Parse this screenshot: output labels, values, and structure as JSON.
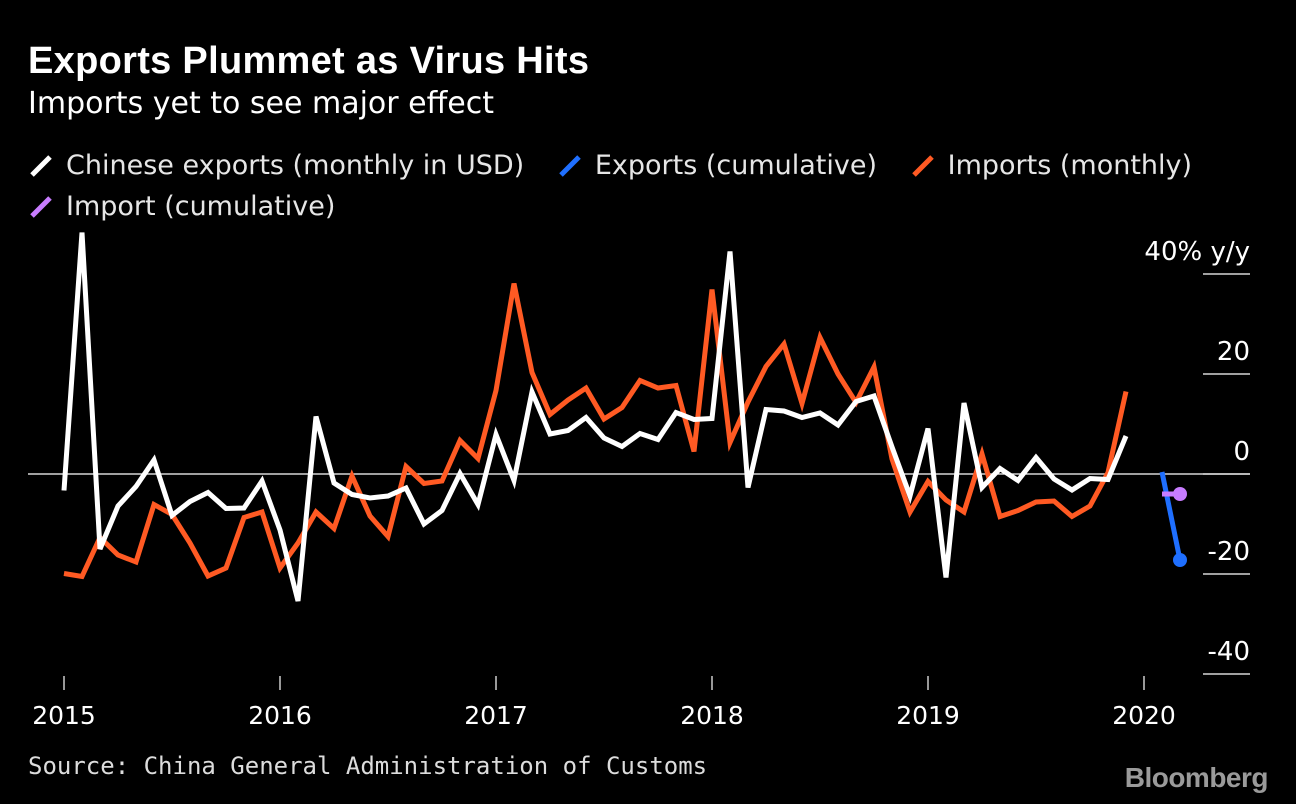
{
  "chart_data": {
    "type": "line",
    "title": "Exports Plummet as Virus Hits",
    "subtitle": "Imports yet to see major effect",
    "ylabel": "% y/y",
    "ylim": [
      -40,
      40
    ],
    "yticks": [
      40,
      20,
      0,
      -20,
      -40
    ],
    "ytick_labels": [
      "40% y/y",
      "20",
      "0",
      "-20",
      "-40"
    ],
    "x_axis": {
      "start": "2015-01",
      "end": "2020-03",
      "tick_labels": [
        "2015",
        "2016",
        "2017",
        "2018",
        "2019",
        "2020"
      ],
      "tick_month_index": [
        0,
        12,
        24,
        36,
        48,
        60
      ]
    },
    "series": [
      {
        "name": "Chinese exports (monthly in USD)",
        "color": "#ffffff",
        "start_month_index": 0,
        "values": [
          -3.3,
          48.3,
          -15,
          -6.4,
          -2.5,
          2.8,
          -8.3,
          -5.5,
          -3.7,
          -6.9,
          -6.8,
          -1.4,
          -11.2,
          -25.4,
          11.5,
          -1.8,
          -4.1,
          -4.8,
          -4.4,
          -2.8,
          -10,
          -7.3,
          0.1,
          -6.1,
          7.9,
          -1.3,
          16.4,
          8,
          8.7,
          11.3,
          7.2,
          5.5,
          8.1,
          6.9,
          12.3,
          10.9,
          11.1,
          44.5,
          -2.7,
          12.9,
          12.6,
          11.3,
          12.2,
          9.8,
          14.5,
          15.6,
          5.4,
          -4.4,
          9.1,
          -20.7,
          14.2,
          -2.7,
          1.1,
          -1.3,
          3.3,
          -1,
          -3.2,
          -0.9,
          -1.1,
          7.6
        ],
        "labels": []
      },
      {
        "name": "Exports (cumulative)",
        "color": "#1f6fff",
        "start_month_index": 61,
        "values": [
          0.4,
          -17.2
        ],
        "labels": []
      },
      {
        "name": "Imports (monthly)",
        "color": "#ff5a23",
        "start_month_index": 0,
        "values": [
          -19.9,
          -20.5,
          -12.7,
          -16.2,
          -17.6,
          -6.1,
          -8.1,
          -13.8,
          -20.4,
          -18.8,
          -8.7,
          -7.6,
          -18.8,
          -13.8,
          -7.6,
          -10.9,
          -0.4,
          -8.4,
          -12.5,
          1.5,
          -1.9,
          -1.4,
          6.7,
          3.1,
          16.7,
          38.1,
          20.3,
          11.9,
          14.8,
          17.2,
          11,
          13.3,
          18.7,
          17.2,
          17.7,
          4.5,
          36.9,
          6.3,
          14.4,
          21.5,
          26,
          14.1,
          27.3,
          20,
          14.3,
          21.4,
          3,
          -7.6,
          -1.5,
          -5.2,
          -7.6,
          4,
          -8.5,
          -7.3,
          -5.6,
          -5.4,
          -8.5,
          -6.4,
          0.3,
          16.5
        ],
        "labels": []
      },
      {
        "name": "Import (cumulative)",
        "color": "#c87dff",
        "start_month_index": 61,
        "values": [
          -4,
          -4
        ],
        "labels": []
      }
    ]
  },
  "source": "Source: China General Administration of Customs",
  "brand": "Bloomberg",
  "colors": {
    "background": "#000000",
    "axis": "#ffffff"
  }
}
